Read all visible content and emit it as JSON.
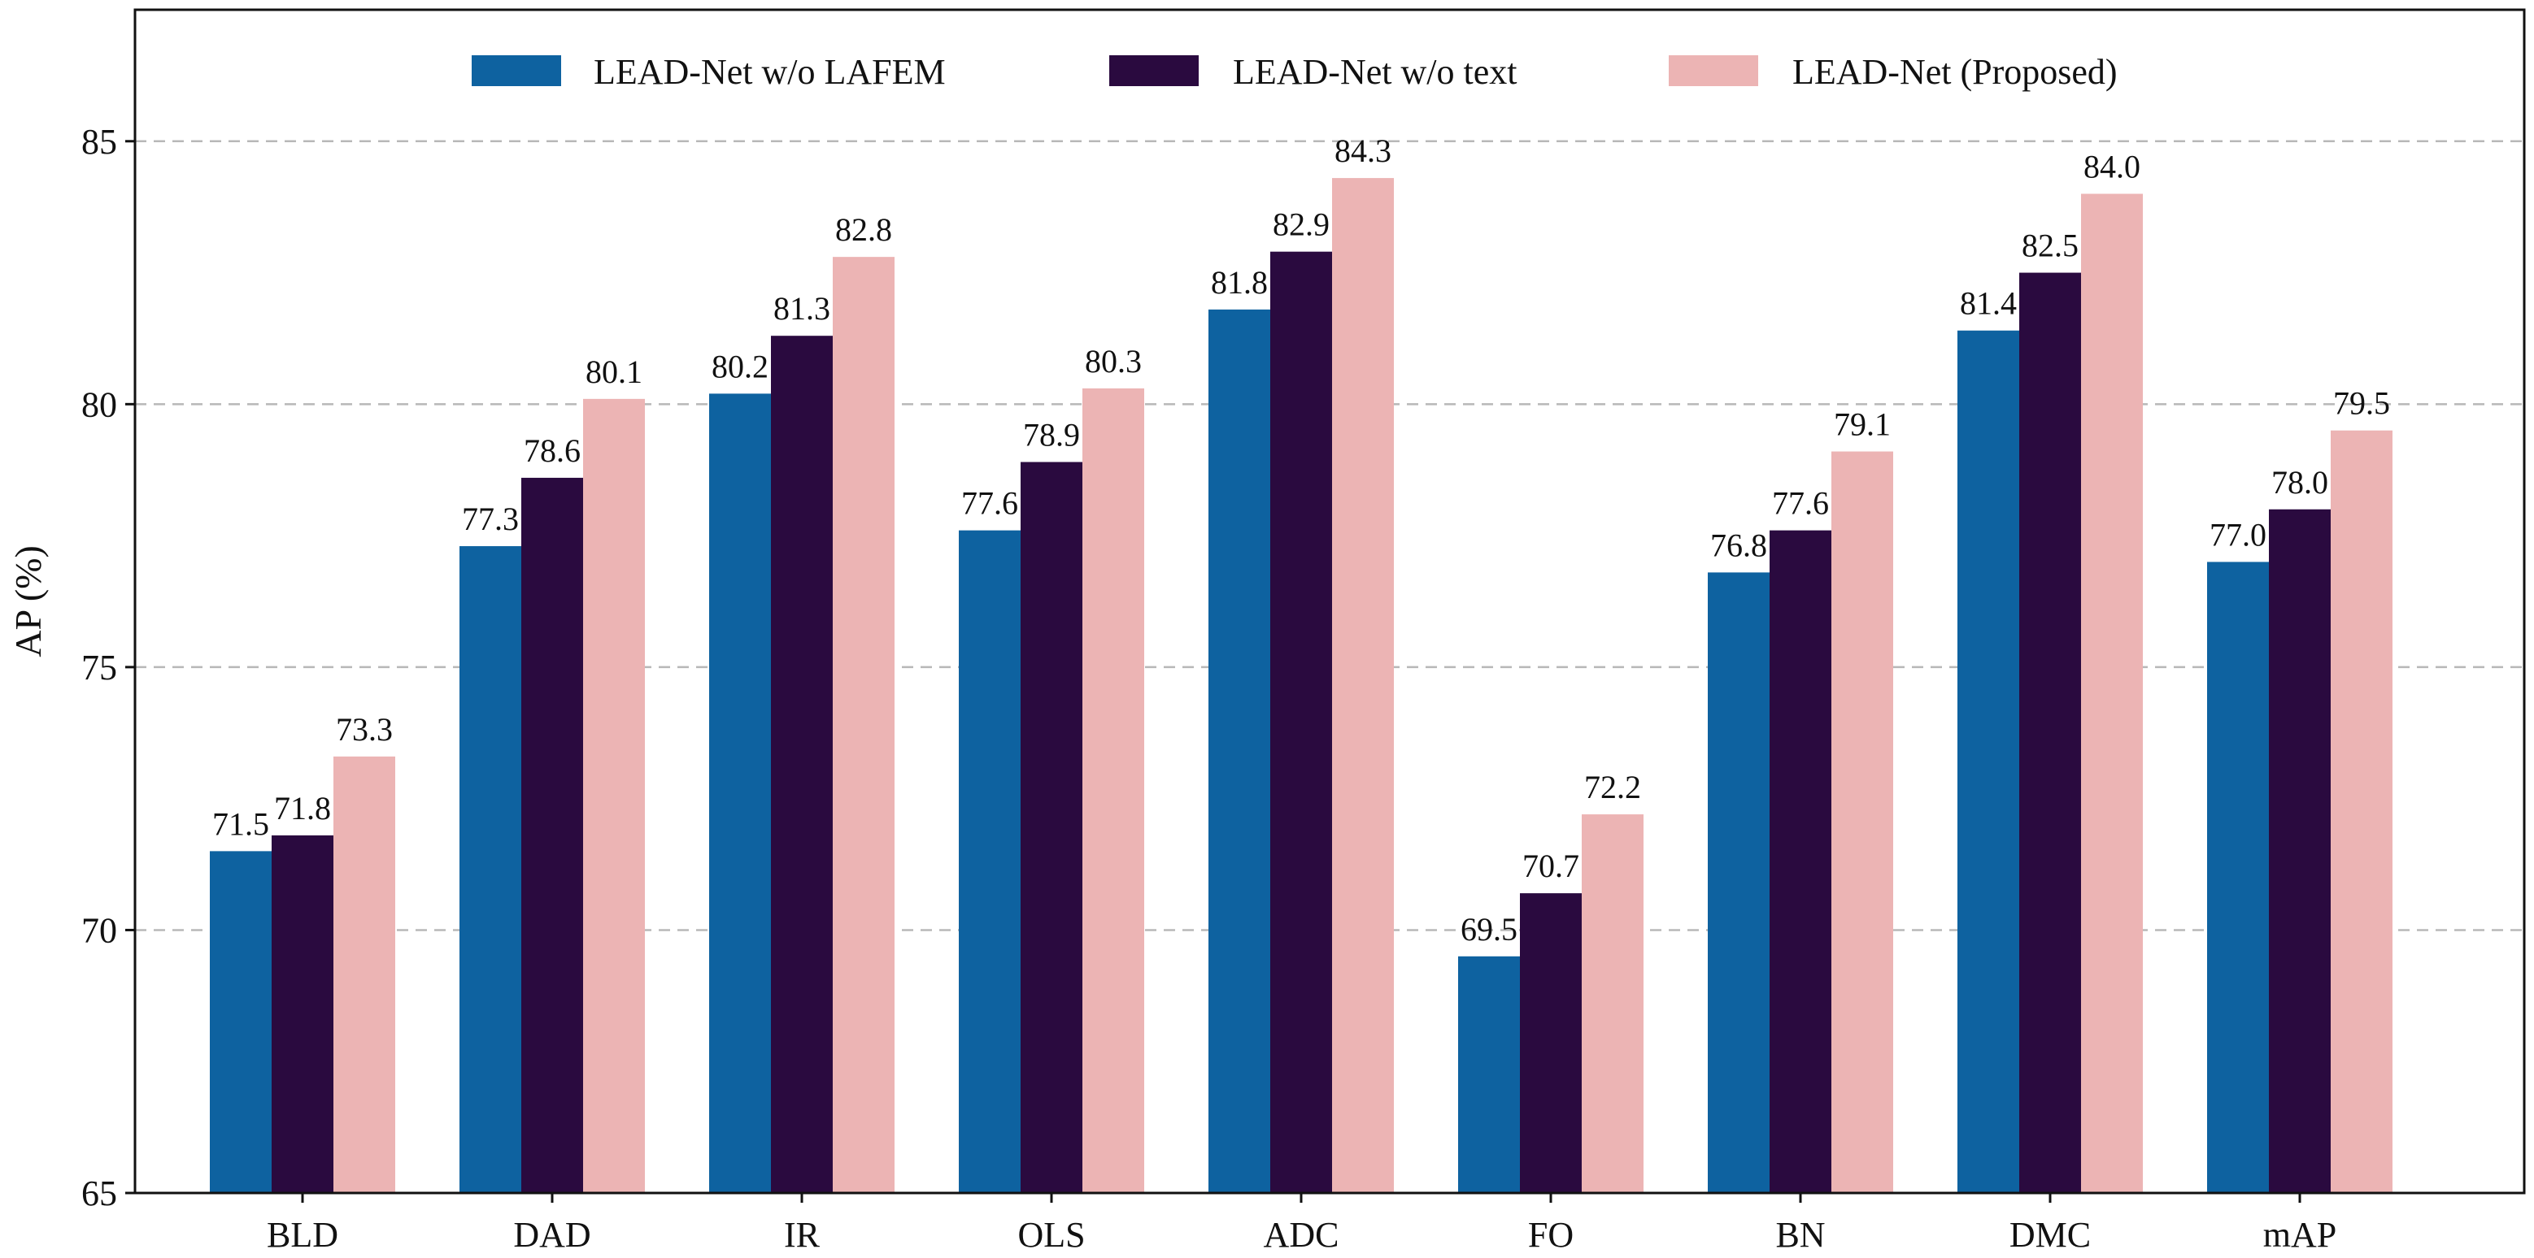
{
  "chart_data": {
    "type": "bar",
    "title": "",
    "xlabel": "",
    "ylabel": "AP (%)",
    "ylim": [
      65,
      87.5
    ],
    "yticks": [
      "65",
      "70",
      "75",
      "80",
      "85"
    ],
    "grid": true,
    "legend_position": "top-center",
    "categories": [
      "BLD",
      "DAD",
      "IR",
      "OLS",
      "ADC",
      "FO",
      "BN",
      "DMC",
      "mAP"
    ],
    "series": [
      {
        "name": "LEAD-Net w/o LAFEM",
        "color": "#0e62a0",
        "values": [
          71.5,
          77.3,
          80.2,
          77.6,
          81.8,
          69.5,
          76.8,
          81.4,
          77.0
        ],
        "labels": [
          "71.5",
          "77.3",
          "80.2",
          "77.6",
          "81.8",
          "69.5",
          "76.8",
          "81.4",
          "77.0"
        ]
      },
      {
        "name": "LEAD-Net w/o text",
        "color": "#2a0a3f",
        "values": [
          71.8,
          78.6,
          81.3,
          78.9,
          82.9,
          70.7,
          77.6,
          82.5,
          78.0
        ],
        "labels": [
          "71.8",
          "78.6",
          "81.3",
          "78.9",
          "82.9",
          "70.7",
          "77.6",
          "82.5",
          "78.0"
        ]
      },
      {
        "name": "LEAD-Net (Proposed)",
        "color": "#ecb4b4",
        "values": [
          73.3,
          80.1,
          82.8,
          80.3,
          84.3,
          72.2,
          79.1,
          84.0,
          79.5
        ],
        "labels": [
          "73.3",
          "80.1",
          "82.8",
          "80.3",
          "84.3",
          "72.2",
          "79.1",
          "84.0",
          "79.5"
        ]
      }
    ]
  }
}
